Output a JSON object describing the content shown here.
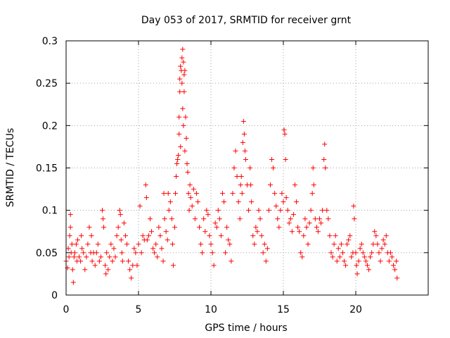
{
  "chart_data": {
    "type": "scatter",
    "title": "Day 053 of 2017, SRMTID for receiver grnt",
    "xlabel": "GPS time / hours",
    "ylabel": "SRMTID / TECUs",
    "xlim": [
      0,
      25
    ],
    "ylim": [
      0,
      0.3
    ],
    "xticks": [
      0,
      5,
      10,
      15,
      20
    ],
    "xtick_labels": [
      "0",
      "5",
      "10",
      "15",
      "20"
    ],
    "yticks": [
      0,
      0.05,
      0.1,
      0.15,
      0.2,
      0.25,
      0.3
    ],
    "ytick_labels": [
      "0",
      "0.05",
      "0.1",
      "0.15",
      "0.2",
      "0.25",
      "0.3"
    ],
    "grid": true,
    "marker": "+",
    "color": "#ff0000",
    "series": [
      {
        "name": "SRMTID",
        "points": [
          [
            0.0,
            0.04
          ],
          [
            0.1,
            0.032
          ],
          [
            0.15,
            0.055
          ],
          [
            0.2,
            0.045
          ],
          [
            0.25,
            0.07
          ],
          [
            0.3,
            0.08
          ],
          [
            0.3,
            0.095
          ],
          [
            0.35,
            0.05
          ],
          [
            0.4,
            0.06
          ],
          [
            0.45,
            0.03
          ],
          [
            0.5,
            0.015
          ],
          [
            0.55,
            0.045
          ],
          [
            0.6,
            0.05
          ],
          [
            0.7,
            0.06
          ],
          [
            0.75,
            0.04
          ],
          [
            0.8,
            0.065
          ],
          [
            0.9,
            0.045
          ],
          [
            1.0,
            0.04
          ],
          [
            1.05,
            0.07
          ],
          [
            1.1,
            0.055
          ],
          [
            1.2,
            0.05
          ],
          [
            1.3,
            0.03
          ],
          [
            1.4,
            0.045
          ],
          [
            1.5,
            0.06
          ],
          [
            1.6,
            0.08
          ],
          [
            1.7,
            0.05
          ],
          [
            1.75,
            0.07
          ],
          [
            1.8,
            0.04
          ],
          [
            1.9,
            0.05
          ],
          [
            2.0,
            0.035
          ],
          [
            2.1,
            0.05
          ],
          [
            2.2,
            0.06
          ],
          [
            2.3,
            0.04
          ],
          [
            2.4,
            0.045
          ],
          [
            2.5,
            0.1
          ],
          [
            2.55,
            0.09
          ],
          [
            2.6,
            0.08
          ],
          [
            2.7,
            0.035
          ],
          [
            2.75,
            0.025
          ],
          [
            2.8,
            0.05
          ],
          [
            2.9,
            0.03
          ],
          [
            3.0,
            0.045
          ],
          [
            3.1,
            0.06
          ],
          [
            3.2,
            0.04
          ],
          [
            3.3,
            0.055
          ],
          [
            3.4,
            0.045
          ],
          [
            3.5,
            0.07
          ],
          [
            3.6,
            0.08
          ],
          [
            3.7,
            0.1
          ],
          [
            3.75,
            0.095
          ],
          [
            3.8,
            0.065
          ],
          [
            3.85,
            0.05
          ],
          [
            3.9,
            0.04
          ],
          [
            4.0,
            0.085
          ],
          [
            4.1,
            0.07
          ],
          [
            4.2,
            0.06
          ],
          [
            4.3,
            0.04
          ],
          [
            4.4,
            0.03
          ],
          [
            4.5,
            0.02
          ],
          [
            4.6,
            0.035
          ],
          [
            4.7,
            0.055
          ],
          [
            4.8,
            0.05
          ],
          [
            4.9,
            0.035
          ],
          [
            5.0,
            0.06
          ],
          [
            5.1,
            0.105
          ],
          [
            5.2,
            0.05
          ],
          [
            5.3,
            0.07
          ],
          [
            5.4,
            0.065
          ],
          [
            5.5,
            0.13
          ],
          [
            5.55,
            0.115
          ],
          [
            5.6,
            0.065
          ],
          [
            5.7,
            0.07
          ],
          [
            5.8,
            0.09
          ],
          [
            5.9,
            0.075
          ],
          [
            6.0,
            0.055
          ],
          [
            6.1,
            0.05
          ],
          [
            6.2,
            0.06
          ],
          [
            6.3,
            0.045
          ],
          [
            6.4,
            0.08
          ],
          [
            6.5,
            0.07
          ],
          [
            6.6,
            0.055
          ],
          [
            6.7,
            0.04
          ],
          [
            6.75,
            0.12
          ],
          [
            6.8,
            0.09
          ],
          [
            6.9,
            0.075
          ],
          [
            7.0,
            0.065
          ],
          [
            7.05,
            0.12
          ],
          [
            7.1,
            0.1
          ],
          [
            7.2,
            0.11
          ],
          [
            7.3,
            0.09
          ],
          [
            7.35,
            0.06
          ],
          [
            7.4,
            0.035
          ],
          [
            7.5,
            0.08
          ],
          [
            7.55,
            0.12
          ],
          [
            7.6,
            0.14
          ],
          [
            7.65,
            0.155
          ],
          [
            7.7,
            0.16
          ],
          [
            7.75,
            0.165
          ],
          [
            7.8,
            0.19
          ],
          [
            7.8,
            0.21
          ],
          [
            7.85,
            0.255
          ],
          [
            7.85,
            0.24
          ],
          [
            7.9,
            0.27
          ],
          [
            7.9,
            0.175
          ],
          [
            7.95,
            0.265
          ],
          [
            8.0,
            0.28
          ],
          [
            8.0,
            0.25
          ],
          [
            8.05,
            0.29
          ],
          [
            8.05,
            0.22
          ],
          [
            8.1,
            0.275
          ],
          [
            8.1,
            0.2
          ],
          [
            8.15,
            0.26
          ],
          [
            8.15,
            0.24
          ],
          [
            8.2,
            0.265
          ],
          [
            8.2,
            0.17
          ],
          [
            8.25,
            0.21
          ],
          [
            8.3,
            0.185
          ],
          [
            8.35,
            0.155
          ],
          [
            8.4,
            0.145
          ],
          [
            8.45,
            0.12
          ],
          [
            8.5,
            0.1
          ],
          [
            8.55,
            0.13
          ],
          [
            8.6,
            0.115
          ],
          [
            8.7,
            0.105
          ],
          [
            8.8,
            0.125
          ],
          [
            8.9,
            0.09
          ],
          [
            9.0,
            0.12
          ],
          [
            9.1,
            0.11
          ],
          [
            9.2,
            0.08
          ],
          [
            9.3,
            0.06
          ],
          [
            9.4,
            0.05
          ],
          [
            9.5,
            0.09
          ],
          [
            9.6,
            0.075
          ],
          [
            9.7,
            0.1
          ],
          [
            9.8,
            0.095
          ],
          [
            9.9,
            0.07
          ],
          [
            10.0,
            0.06
          ],
          [
            10.1,
            0.05
          ],
          [
            10.2,
            0.035
          ],
          [
            10.3,
            0.085
          ],
          [
            10.4,
            0.08
          ],
          [
            10.5,
            0.1
          ],
          [
            10.6,
            0.09
          ],
          [
            10.7,
            0.07
          ],
          [
            10.8,
            0.12
          ],
          [
            10.9,
            0.11
          ],
          [
            11.0,
            0.05
          ],
          [
            11.1,
            0.08
          ],
          [
            11.2,
            0.065
          ],
          [
            11.3,
            0.06
          ],
          [
            11.4,
            0.04
          ],
          [
            11.5,
            0.12
          ],
          [
            11.6,
            0.15
          ],
          [
            11.7,
            0.17
          ],
          [
            11.8,
            0.14
          ],
          [
            11.9,
            0.11
          ],
          [
            12.0,
            0.09
          ],
          [
            12.05,
            0.13
          ],
          [
            12.1,
            0.14
          ],
          [
            12.15,
            0.12
          ],
          [
            12.2,
            0.18
          ],
          [
            12.25,
            0.205
          ],
          [
            12.3,
            0.19
          ],
          [
            12.35,
            0.17
          ],
          [
            12.4,
            0.16
          ],
          [
            12.5,
            0.13
          ],
          [
            12.6,
            0.1
          ],
          [
            12.7,
            0.15
          ],
          [
            12.75,
            0.13
          ],
          [
            12.8,
            0.11
          ],
          [
            12.9,
            0.07
          ],
          [
            13.0,
            0.06
          ],
          [
            13.1,
            0.08
          ],
          [
            13.2,
            0.075
          ],
          [
            13.3,
            0.1
          ],
          [
            13.4,
            0.09
          ],
          [
            13.5,
            0.07
          ],
          [
            13.6,
            0.05
          ],
          [
            13.7,
            0.06
          ],
          [
            13.8,
            0.04
          ],
          [
            13.9,
            0.055
          ],
          [
            14.0,
            0.1
          ],
          [
            14.1,
            0.13
          ],
          [
            14.2,
            0.16
          ],
          [
            14.3,
            0.15
          ],
          [
            14.4,
            0.12
          ],
          [
            14.5,
            0.105
          ],
          [
            14.6,
            0.09
          ],
          [
            14.7,
            0.08
          ],
          [
            14.8,
            0.1
          ],
          [
            14.9,
            0.12
          ],
          [
            15.0,
            0.11
          ],
          [
            15.05,
            0.195
          ],
          [
            15.1,
            0.19
          ],
          [
            15.15,
            0.16
          ],
          [
            15.2,
            0.115
          ],
          [
            15.3,
            0.1
          ],
          [
            15.4,
            0.085
          ],
          [
            15.5,
            0.09
          ],
          [
            15.6,
            0.075
          ],
          [
            15.7,
            0.095
          ],
          [
            15.8,
            0.13
          ],
          [
            15.9,
            0.11
          ],
          [
            16.0,
            0.08
          ],
          [
            16.1,
            0.075
          ],
          [
            16.2,
            0.05
          ],
          [
            16.3,
            0.045
          ],
          [
            16.4,
            0.07
          ],
          [
            16.5,
            0.09
          ],
          [
            16.6,
            0.08
          ],
          [
            16.7,
            0.06
          ],
          [
            16.8,
            0.085
          ],
          [
            16.9,
            0.1
          ],
          [
            17.0,
            0.12
          ],
          [
            17.05,
            0.15
          ],
          [
            17.1,
            0.13
          ],
          [
            17.2,
            0.09
          ],
          [
            17.3,
            0.08
          ],
          [
            17.4,
            0.075
          ],
          [
            17.5,
            0.09
          ],
          [
            17.6,
            0.085
          ],
          [
            17.7,
            0.1
          ],
          [
            17.8,
            0.16
          ],
          [
            17.85,
            0.178
          ],
          [
            17.9,
            0.15
          ],
          [
            18.0,
            0.1
          ],
          [
            18.1,
            0.09
          ],
          [
            18.2,
            0.07
          ],
          [
            18.3,
            0.05
          ],
          [
            18.4,
            0.045
          ],
          [
            18.5,
            0.06
          ],
          [
            18.6,
            0.07
          ],
          [
            18.7,
            0.04
          ],
          [
            18.8,
            0.055
          ],
          [
            18.9,
            0.045
          ],
          [
            19.0,
            0.06
          ],
          [
            19.1,
            0.05
          ],
          [
            19.2,
            0.04
          ],
          [
            19.3,
            0.035
          ],
          [
            19.4,
            0.06
          ],
          [
            19.5,
            0.065
          ],
          [
            19.6,
            0.07
          ],
          [
            19.7,
            0.045
          ],
          [
            19.8,
            0.05
          ],
          [
            19.85,
            0.105
          ],
          [
            19.9,
            0.09
          ],
          [
            20.0,
            0.05
          ],
          [
            20.05,
            0.035
          ],
          [
            20.1,
            0.025
          ],
          [
            20.2,
            0.04
          ],
          [
            20.3,
            0.055
          ],
          [
            20.4,
            0.06
          ],
          [
            20.5,
            0.05
          ],
          [
            20.6,
            0.045
          ],
          [
            20.7,
            0.04
          ],
          [
            20.8,
            0.035
          ],
          [
            20.9,
            0.03
          ],
          [
            21.0,
            0.045
          ],
          [
            21.1,
            0.05
          ],
          [
            21.2,
            0.06
          ],
          [
            21.3,
            0.075
          ],
          [
            21.4,
            0.07
          ],
          [
            21.5,
            0.06
          ],
          [
            21.6,
            0.05
          ],
          [
            21.7,
            0.04
          ],
          [
            21.8,
            0.055
          ],
          [
            21.9,
            0.065
          ],
          [
            22.0,
            0.06
          ],
          [
            22.1,
            0.07
          ],
          [
            22.2,
            0.05
          ],
          [
            22.3,
            0.04
          ],
          [
            22.4,
            0.05
          ],
          [
            22.5,
            0.045
          ],
          [
            22.6,
            0.035
          ],
          [
            22.7,
            0.03
          ],
          [
            22.8,
            0.04
          ],
          [
            22.85,
            0.02
          ]
        ]
      }
    ]
  }
}
